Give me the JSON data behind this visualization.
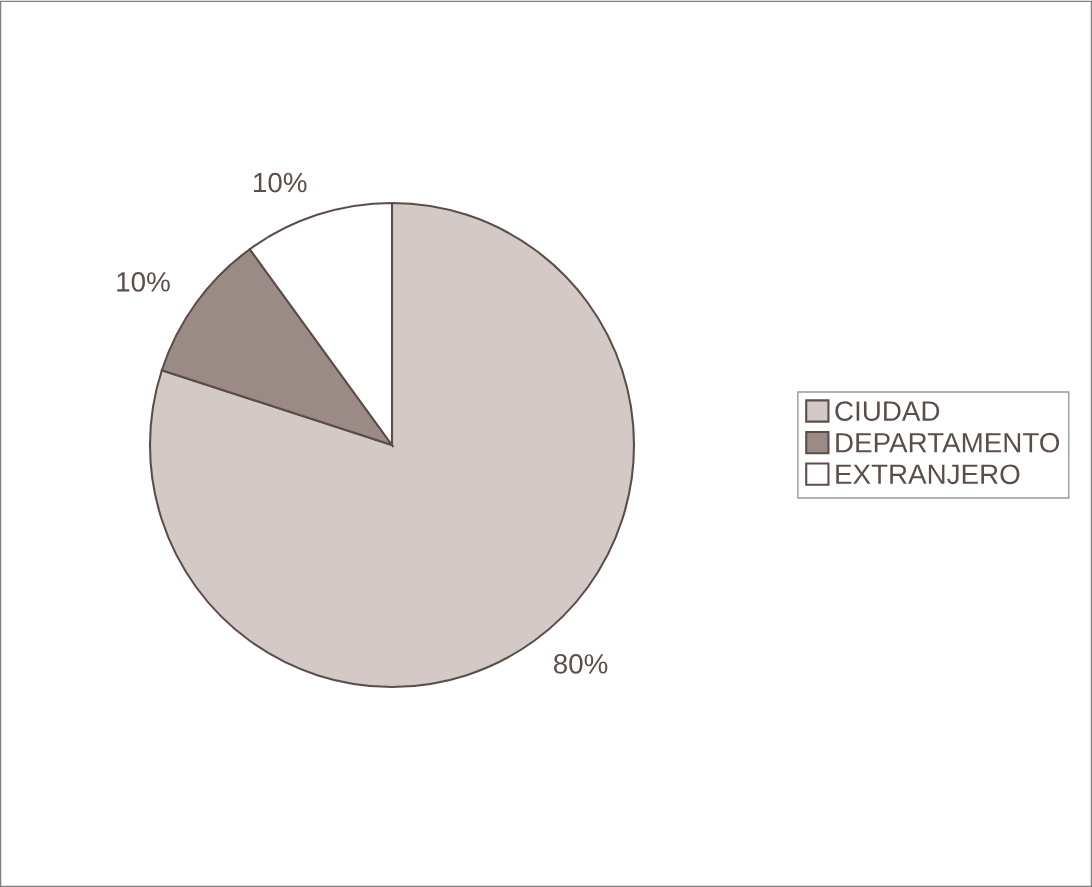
{
  "chart_data": {
    "type": "pie",
    "categories": [
      "CIUDAD",
      "DEPARTAMENTO",
      "EXTRANJERO"
    ],
    "values": [
      80,
      10,
      10
    ],
    "colors": [
      "#d3cac7",
      "#9a8b86",
      "#ffffff"
    ],
    "value_labels": [
      "80%",
      "10%",
      "10%"
    ],
    "legend": "right"
  }
}
